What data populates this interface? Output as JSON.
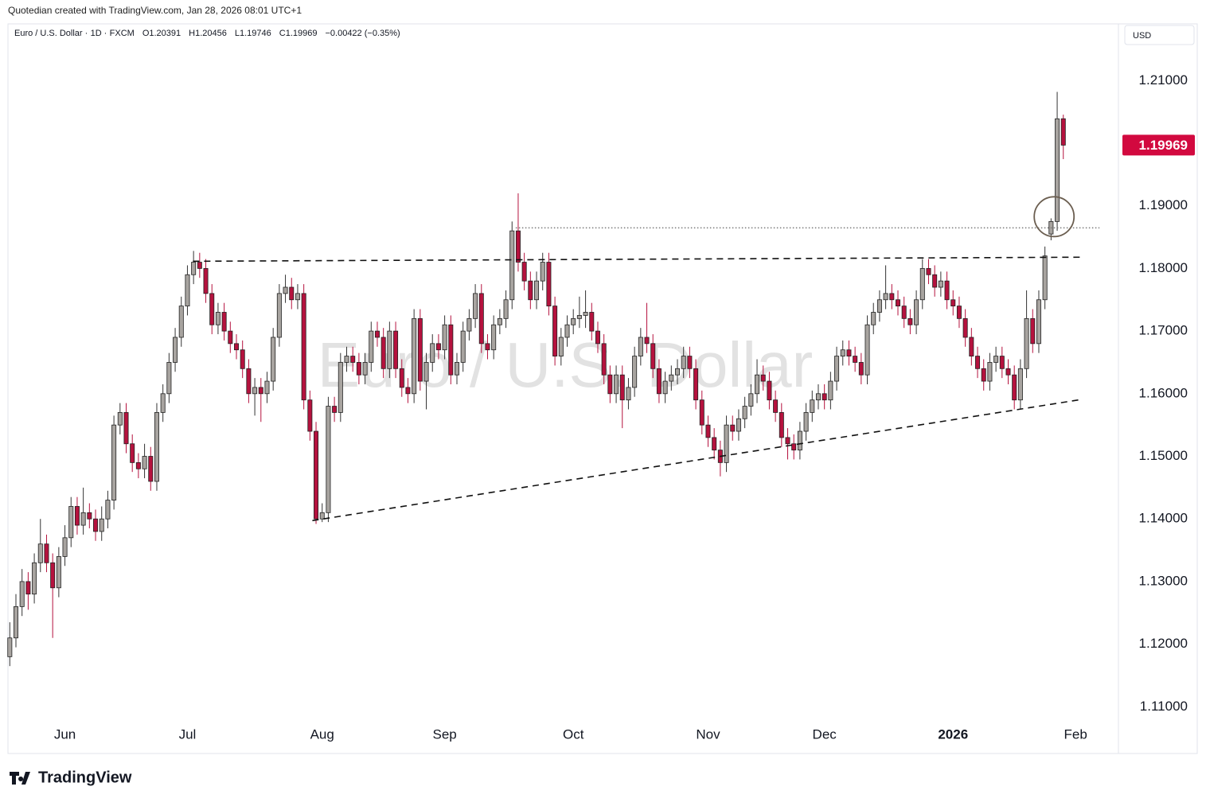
{
  "credit": "Quotedian created with TradingView.com, Jan 28, 2026 08:01 UTC+1",
  "brand": "TradingView",
  "chart_data": {
    "type": "candlestick",
    "symbol": "Euro / U.S. Dollar",
    "interval": "1D",
    "source": "FXCM",
    "ohlc_text": [
      "O1.20391",
      "H1.20456",
      "L1.19746",
      "C1.19969",
      "−0.00422 (−0.35%)"
    ],
    "currency": "USD",
    "last_price": 1.19969,
    "up_color": "#a8a4a0",
    "down_color": "#b5123e",
    "last_color": "#d2093f",
    "xlim": [
      -0.3,
      181
    ],
    "ylim": [
      1.1075,
      1.2155
    ],
    "xticks": [
      {
        "value": 9,
        "label": "Jun"
      },
      {
        "value": 29,
        "label": "Jul"
      },
      {
        "value": 51,
        "label": "Aug"
      },
      {
        "value": 71,
        "label": "Sep"
      },
      {
        "value": 92,
        "label": "Oct"
      },
      {
        "value": 114,
        "label": "Nov"
      },
      {
        "value": 133,
        "label": "Dec"
      },
      {
        "value": 154,
        "label": "2026"
      },
      {
        "value": 174,
        "label": "Feb"
      }
    ],
    "yticks": [
      {
        "value": 1.11,
        "label": "1.11000"
      },
      {
        "value": 1.12,
        "label": "1.12000"
      },
      {
        "value": 1.13,
        "label": "1.13000"
      },
      {
        "value": 1.14,
        "label": "1.14000"
      },
      {
        "value": 1.15,
        "label": "1.15000"
      },
      {
        "value": 1.16,
        "label": "1.16000"
      },
      {
        "value": 1.17,
        "label": "1.17000"
      },
      {
        "value": 1.18,
        "label": "1.18000"
      },
      {
        "value": 1.19,
        "label": "1.19000"
      },
      {
        "value": 1.21,
        "label": "1.21000"
      }
    ],
    "trendlines": [
      {
        "x": [
          29.9,
          175.3
        ],
        "y": [
          1.18115,
          1.1818
        ],
        "style": "dashed"
      },
      {
        "x": [
          49.4,
          174.8
        ],
        "y": [
          1.13973,
          1.15905
        ],
        "style": "dashed"
      },
      {
        "x": [
          82.6,
          177.9
        ],
        "y": [
          1.18649,
          1.18649
        ],
        "style": "dotted"
      }
    ],
    "highlight": {
      "x": 170.5,
      "y": 1.18827
    },
    "ohlc": [
      [
        1.118,
        1.1235,
        1.1165,
        1.121
      ],
      [
        1.121,
        1.128,
        1.1195,
        1.126
      ],
      [
        1.126,
        1.132,
        1.1245,
        1.13
      ],
      [
        1.13,
        1.1315,
        1.1255,
        1.128
      ],
      [
        1.128,
        1.1345,
        1.1265,
        1.133
      ],
      [
        1.133,
        1.14,
        1.1315,
        1.136
      ],
      [
        1.136,
        1.1375,
        1.1315,
        1.133
      ],
      [
        1.133,
        1.1345,
        1.121,
        1.129
      ],
      [
        1.129,
        1.1355,
        1.1275,
        1.134
      ],
      [
        1.134,
        1.139,
        1.1325,
        1.137
      ],
      [
        1.137,
        1.1435,
        1.1355,
        1.142
      ],
      [
        1.142,
        1.1435,
        1.1375,
        1.139
      ],
      [
        1.139,
        1.145,
        1.1375,
        1.141
      ],
      [
        1.141,
        1.1425,
        1.1385,
        1.14
      ],
      [
        1.14,
        1.1415,
        1.1365,
        1.138
      ],
      [
        1.138,
        1.142,
        1.1365,
        1.14
      ],
      [
        1.14,
        1.1445,
        1.1385,
        1.143
      ],
      [
        1.143,
        1.1565,
        1.1415,
        1.155
      ],
      [
        1.155,
        1.1585,
        1.1535,
        1.157
      ],
      [
        1.157,
        1.1585,
        1.1505,
        1.152
      ],
      [
        1.152,
        1.1535,
        1.1475,
        1.149
      ],
      [
        1.149,
        1.1505,
        1.1465,
        1.148
      ],
      [
        1.148,
        1.152,
        1.1465,
        1.15
      ],
      [
        1.15,
        1.1515,
        1.1445,
        1.146
      ],
      [
        1.146,
        1.1585,
        1.1445,
        1.157
      ],
      [
        1.157,
        1.1615,
        1.1555,
        1.16
      ],
      [
        1.16,
        1.1665,
        1.1585,
        1.165
      ],
      [
        1.165,
        1.1705,
        1.1635,
        1.169
      ],
      [
        1.169,
        1.1755,
        1.1675,
        1.174
      ],
      [
        1.174,
        1.1805,
        1.1725,
        1.179
      ],
      [
        1.179,
        1.1828,
        1.1775,
        1.181
      ],
      [
        1.181,
        1.1825,
        1.1785,
        1.18
      ],
      [
        1.18,
        1.1815,
        1.1745,
        1.176
      ],
      [
        1.176,
        1.1775,
        1.1695,
        1.171
      ],
      [
        1.171,
        1.1745,
        1.1695,
        1.173
      ],
      [
        1.173,
        1.1745,
        1.1685,
        1.17
      ],
      [
        1.17,
        1.1715,
        1.1665,
        1.168
      ],
      [
        1.168,
        1.1695,
        1.1655,
        1.167
      ],
      [
        1.167,
        1.1685,
        1.1625,
        1.164
      ],
      [
        1.164,
        1.1655,
        1.1585,
        1.16
      ],
      [
        1.16,
        1.1625,
        1.1565,
        1.161
      ],
      [
        1.161,
        1.1625,
        1.1555,
        1.16
      ],
      [
        1.16,
        1.1635,
        1.1585,
        1.162
      ],
      [
        1.162,
        1.1705,
        1.1605,
        1.169
      ],
      [
        1.169,
        1.1775,
        1.1675,
        1.176
      ],
      [
        1.176,
        1.179,
        1.1745,
        1.177
      ],
      [
        1.177,
        1.1785,
        1.1735,
        1.175
      ],
      [
        1.175,
        1.1775,
        1.1735,
        1.176
      ],
      [
        1.176,
        1.1775,
        1.1575,
        1.159
      ],
      [
        1.159,
        1.1605,
        1.1525,
        1.154
      ],
      [
        1.154,
        1.1555,
        1.1392,
        1.14
      ],
      [
        1.14,
        1.1425,
        1.1395,
        1.141
      ],
      [
        1.141,
        1.1595,
        1.1395,
        1.158
      ],
      [
        1.158,
        1.1595,
        1.1555,
        1.157
      ],
      [
        1.157,
        1.1665,
        1.1555,
        1.165
      ],
      [
        1.165,
        1.1675,
        1.1635,
        1.166
      ],
      [
        1.166,
        1.1675,
        1.1635,
        1.165
      ],
      [
        1.165,
        1.1665,
        1.1615,
        1.163
      ],
      [
        1.163,
        1.1665,
        1.1615,
        1.165
      ],
      [
        1.165,
        1.1715,
        1.1635,
        1.17
      ],
      [
        1.17,
        1.1715,
        1.1675,
        1.169
      ],
      [
        1.169,
        1.1705,
        1.1625,
        1.164
      ],
      [
        1.164,
        1.1715,
        1.1625,
        1.17
      ],
      [
        1.17,
        1.1715,
        1.1625,
        1.164
      ],
      [
        1.164,
        1.1655,
        1.1595,
        1.161
      ],
      [
        1.161,
        1.1625,
        1.1585,
        1.16
      ],
      [
        1.16,
        1.1735,
        1.1585,
        1.172
      ],
      [
        1.172,
        1.1735,
        1.1605,
        1.162
      ],
      [
        1.162,
        1.1665,
        1.1575,
        1.165
      ],
      [
        1.165,
        1.1695,
        1.1635,
        1.168
      ],
      [
        1.168,
        1.1695,
        1.1655,
        1.167
      ],
      [
        1.167,
        1.1725,
        1.1655,
        1.171
      ],
      [
        1.171,
        1.1725,
        1.1615,
        1.163
      ],
      [
        1.163,
        1.1665,
        1.1615,
        1.165
      ],
      [
        1.165,
        1.1715,
        1.1635,
        1.17
      ],
      [
        1.17,
        1.1735,
        1.1685,
        1.172
      ],
      [
        1.172,
        1.1775,
        1.1705,
        1.176
      ],
      [
        1.176,
        1.1775,
        1.1665,
        1.168
      ],
      [
        1.168,
        1.1695,
        1.1655,
        1.167
      ],
      [
        1.167,
        1.1725,
        1.1655,
        1.171
      ],
      [
        1.171,
        1.1735,
        1.1695,
        1.172
      ],
      [
        1.172,
        1.1765,
        1.1705,
        1.175
      ],
      [
        1.175,
        1.1875,
        1.1735,
        1.186
      ],
      [
        1.186,
        1.192,
        1.1795,
        1.181
      ],
      [
        1.181,
        1.1825,
        1.1765,
        1.178
      ],
      [
        1.178,
        1.1795,
        1.1735,
        1.175
      ],
      [
        1.175,
        1.1795,
        1.1735,
        1.178
      ],
      [
        1.178,
        1.1825,
        1.1765,
        1.181
      ],
      [
        1.181,
        1.1825,
        1.1725,
        1.174
      ],
      [
        1.174,
        1.1755,
        1.1645,
        1.166
      ],
      [
        1.166,
        1.1705,
        1.1645,
        1.169
      ],
      [
        1.169,
        1.1725,
        1.1675,
        1.171
      ],
      [
        1.171,
        1.1735,
        1.1695,
        1.172
      ],
      [
        1.172,
        1.1755,
        1.1705,
        1.1725
      ],
      [
        1.1725,
        1.1765,
        1.1705,
        1.173
      ],
      [
        1.173,
        1.1745,
        1.1685,
        1.17
      ],
      [
        1.17,
        1.1715,
        1.1665,
        1.168
      ],
      [
        1.168,
        1.1695,
        1.1615,
        1.163
      ],
      [
        1.163,
        1.1645,
        1.1585,
        1.16
      ],
      [
        1.16,
        1.1645,
        1.1585,
        1.163
      ],
      [
        1.163,
        1.1645,
        1.1545,
        1.159
      ],
      [
        1.159,
        1.1625,
        1.1575,
        1.161
      ],
      [
        1.161,
        1.1675,
        1.1595,
        1.166
      ],
      [
        1.166,
        1.1705,
        1.1645,
        1.169
      ],
      [
        1.169,
        1.1745,
        1.1665,
        1.168
      ],
      [
        1.168,
        1.1695,
        1.1625,
        1.164
      ],
      [
        1.164,
        1.1655,
        1.1585,
        1.16
      ],
      [
        1.16,
        1.1635,
        1.1585,
        1.162
      ],
      [
        1.162,
        1.1645,
        1.1605,
        1.163
      ],
      [
        1.163,
        1.1655,
        1.1615,
        1.164
      ],
      [
        1.164,
        1.1675,
        1.1625,
        1.166
      ],
      [
        1.166,
        1.1675,
        1.1625,
        1.164
      ],
      [
        1.164,
        1.1655,
        1.1575,
        1.159
      ],
      [
        1.159,
        1.1605,
        1.1535,
        1.155
      ],
      [
        1.155,
        1.1565,
        1.1515,
        1.153
      ],
      [
        1.153,
        1.1545,
        1.1495,
        1.151
      ],
      [
        1.151,
        1.1525,
        1.1468,
        1.149
      ],
      [
        1.149,
        1.1565,
        1.1475,
        1.155
      ],
      [
        1.155,
        1.1565,
        1.1525,
        1.154
      ],
      [
        1.154,
        1.1575,
        1.1525,
        1.156
      ],
      [
        1.156,
        1.1595,
        1.1545,
        1.158
      ],
      [
        1.158,
        1.1615,
        1.1565,
        1.16
      ],
      [
        1.16,
        1.1655,
        1.1585,
        1.163
      ],
      [
        1.163,
        1.1645,
        1.1605,
        1.162
      ],
      [
        1.162,
        1.1635,
        1.1575,
        1.159
      ],
      [
        1.159,
        1.1605,
        1.1555,
        1.157
      ],
      [
        1.157,
        1.1585,
        1.1515,
        1.153
      ],
      [
        1.153,
        1.1545,
        1.1495,
        1.152
      ],
      [
        1.152,
        1.1535,
        1.1495,
        1.151
      ],
      [
        1.151,
        1.1555,
        1.1495,
        1.154
      ],
      [
        1.154,
        1.1585,
        1.1525,
        1.157
      ],
      [
        1.157,
        1.1605,
        1.1555,
        1.159
      ],
      [
        1.159,
        1.1615,
        1.1575,
        1.16
      ],
      [
        1.16,
        1.1615,
        1.1575,
        1.159
      ],
      [
        1.159,
        1.1635,
        1.1575,
        1.162
      ],
      [
        1.162,
        1.1675,
        1.1605,
        1.166
      ],
      [
        1.166,
        1.1685,
        1.1645,
        1.167
      ],
      [
        1.167,
        1.1685,
        1.1645,
        1.166
      ],
      [
        1.166,
        1.1675,
        1.1635,
        1.165
      ],
      [
        1.165,
        1.1665,
        1.1615,
        1.163
      ],
      [
        1.163,
        1.1725,
        1.1615,
        1.171
      ],
      [
        1.171,
        1.1745,
        1.1695,
        1.173
      ],
      [
        1.173,
        1.1765,
        1.1715,
        1.175
      ],
      [
        1.175,
        1.1805,
        1.1735,
        1.176
      ],
      [
        1.176,
        1.1775,
        1.1735,
        1.175
      ],
      [
        1.175,
        1.1765,
        1.1725,
        1.174
      ],
      [
        1.174,
        1.1755,
        1.1705,
        1.172
      ],
      [
        1.172,
        1.1735,
        1.1695,
        1.171
      ],
      [
        1.171,
        1.1765,
        1.1695,
        1.175
      ],
      [
        1.175,
        1.1815,
        1.1735,
        1.18
      ],
      [
        1.18,
        1.1815,
        1.1775,
        1.179
      ],
      [
        1.179,
        1.1805,
        1.1755,
        1.177
      ],
      [
        1.177,
        1.1795,
        1.1755,
        1.178
      ],
      [
        1.178,
        1.1795,
        1.1735,
        1.175
      ],
      [
        1.175,
        1.1765,
        1.1725,
        1.174
      ],
      [
        1.174,
        1.1755,
        1.1705,
        1.172
      ],
      [
        1.172,
        1.1735,
        1.1675,
        1.169
      ],
      [
        1.169,
        1.1705,
        1.1645,
        1.166
      ],
      [
        1.166,
        1.1675,
        1.1625,
        1.164
      ],
      [
        1.164,
        1.1655,
        1.1605,
        1.162
      ],
      [
        1.162,
        1.1665,
        1.1605,
        1.165
      ],
      [
        1.165,
        1.1675,
        1.1635,
        1.166
      ],
      [
        1.166,
        1.1675,
        1.1625,
        1.164
      ],
      [
        1.164,
        1.1655,
        1.1615,
        1.163
      ],
      [
        1.163,
        1.1645,
        1.1575,
        1.159
      ],
      [
        1.159,
        1.1655,
        1.1575,
        1.164
      ],
      [
        1.164,
        1.1765,
        1.1625,
        1.172
      ],
      [
        1.172,
        1.1735,
        1.1665,
        1.168
      ],
      [
        1.168,
        1.1765,
        1.1665,
        1.175
      ],
      [
        1.175,
        1.1835,
        1.1735,
        1.182
      ],
      [
        1.1855,
        1.188,
        1.1845,
        1.1875
      ],
      [
        1.1875,
        1.2082,
        1.186,
        1.2039
      ],
      [
        1.20391,
        1.20456,
        1.19746,
        1.19969
      ]
    ]
  }
}
